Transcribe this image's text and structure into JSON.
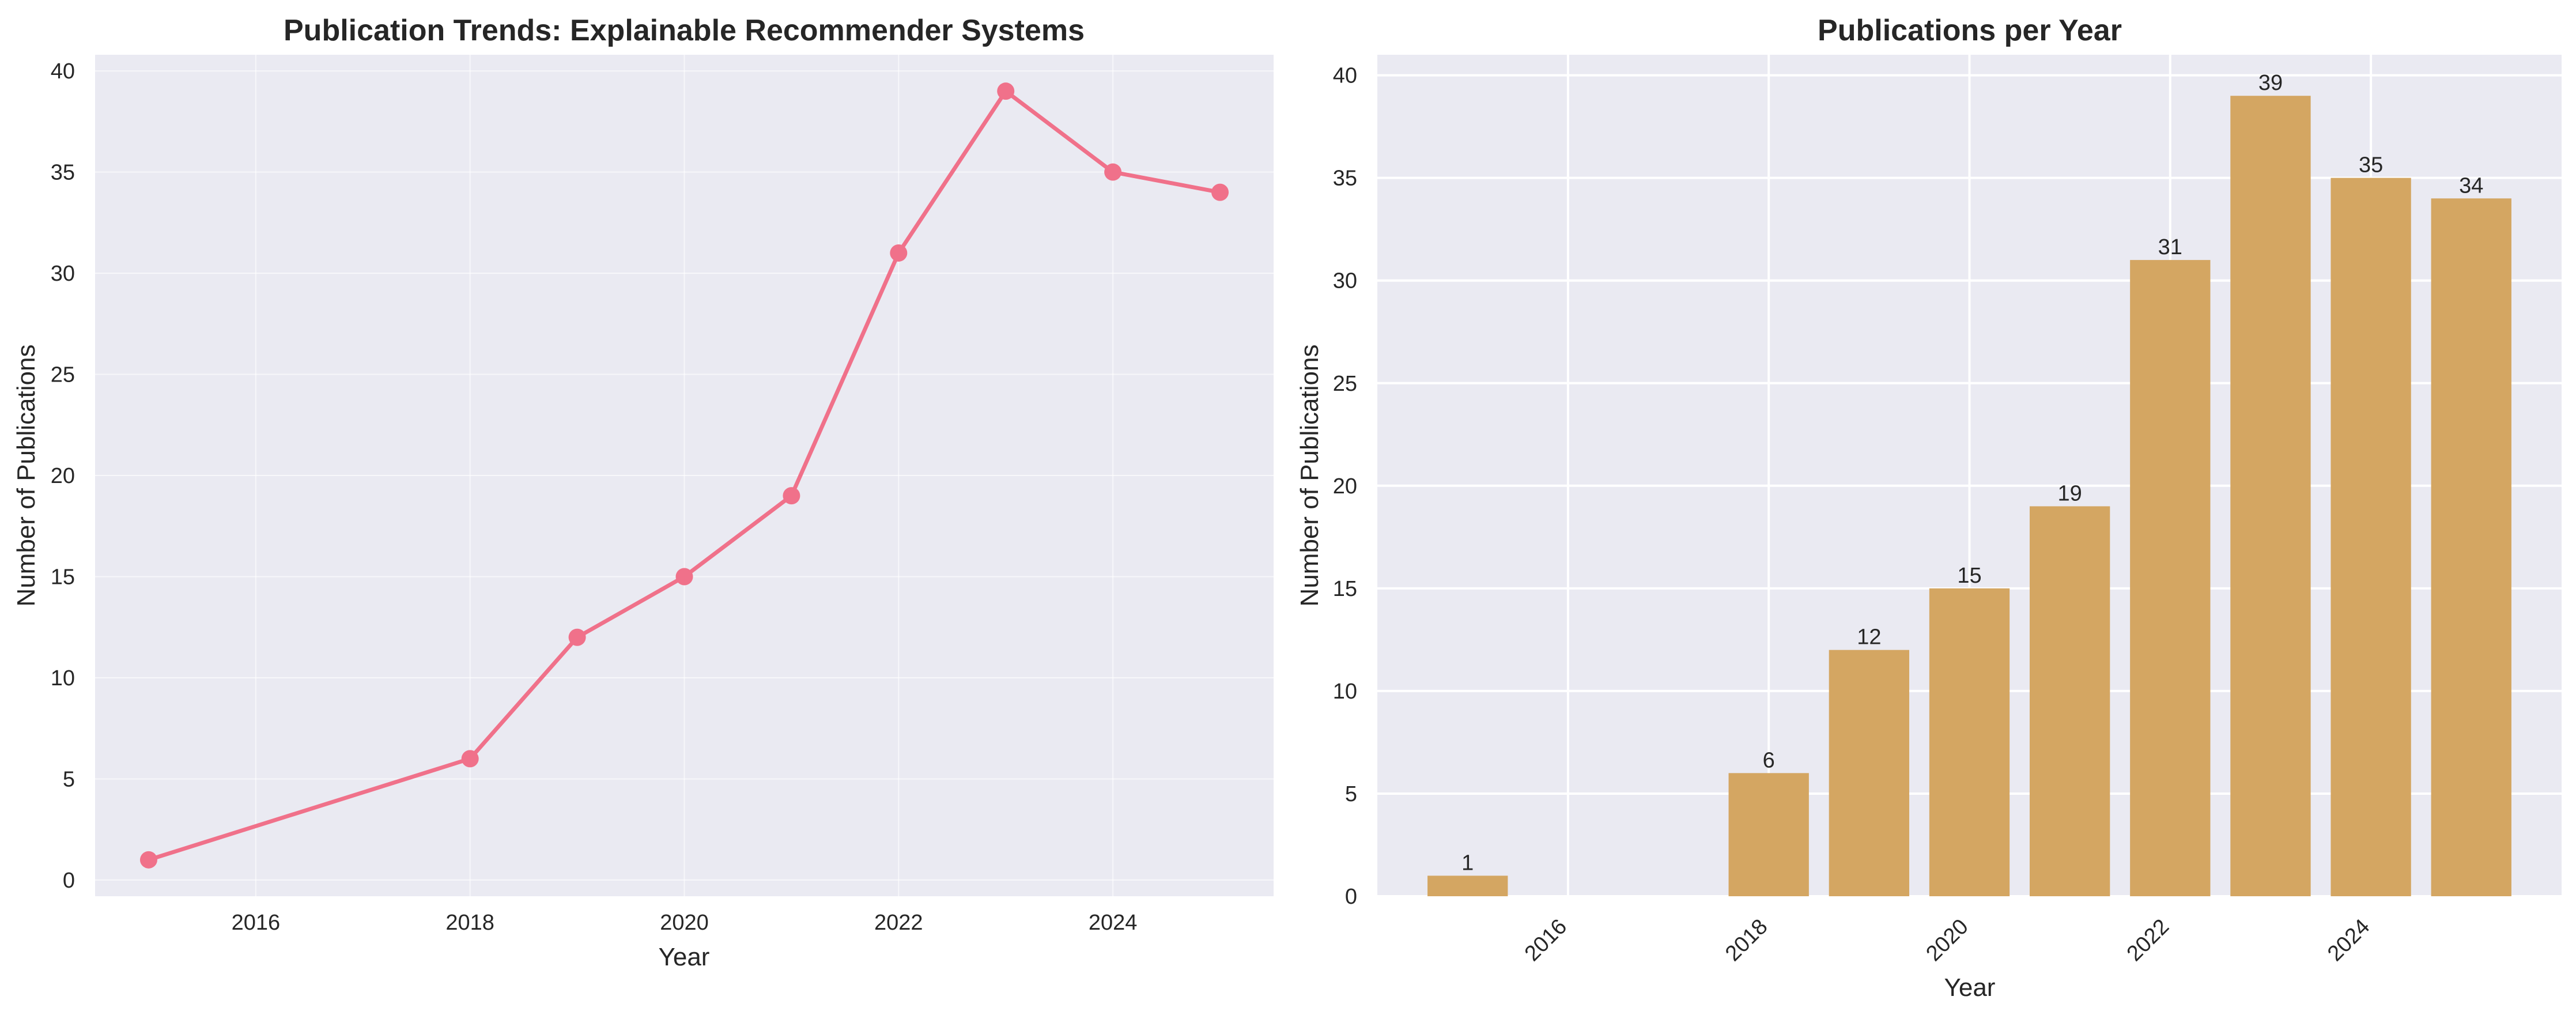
{
  "colors": {
    "figure_background": "#ffffff",
    "plot_background": "#eaeaf2",
    "grid": "#ffffff",
    "line": "#f0718a",
    "bar": "#d4a662"
  },
  "chart_data": [
    {
      "type": "line",
      "title": "Publication Trends: Explainable Recommender Systems",
      "xlabel": "Year",
      "ylabel": "Number of Publications",
      "x": [
        2015,
        2018,
        2019,
        2020,
        2021,
        2022,
        2023,
        2024,
        2025
      ],
      "y": [
        1,
        6,
        12,
        15,
        19,
        31,
        39,
        35,
        34
      ],
      "xlim": [
        2014.5,
        2025.5
      ],
      "ylim": [
        -0.8,
        40.8
      ],
      "xticks": [
        2016,
        2018,
        2020,
        2022,
        2024
      ],
      "yticks": [
        0,
        5,
        10,
        15,
        20,
        25,
        30,
        35,
        40
      ],
      "grid": true,
      "marker": "circle"
    },
    {
      "type": "bar",
      "title": "Publications per Year",
      "xlabel": "Year",
      "ylabel": "Number of Publications",
      "x": [
        2015,
        2018,
        2019,
        2020,
        2021,
        2022,
        2023,
        2024,
        2025
      ],
      "values": [
        1,
        6,
        12,
        15,
        19,
        31,
        39,
        35,
        34
      ],
      "data_labels": [
        "1",
        "6",
        "12",
        "15",
        "19",
        "31",
        "39",
        "35",
        "34"
      ],
      "xlim": [
        2014.1,
        2025.9
      ],
      "ylim": [
        0,
        41
      ],
      "xticks": [
        2016,
        2018,
        2020,
        2022,
        2024
      ],
      "yticks": [
        0,
        5,
        10,
        15,
        20,
        25,
        30,
        35,
        40
      ],
      "xtick_rotation": 45,
      "grid": true
    }
  ]
}
